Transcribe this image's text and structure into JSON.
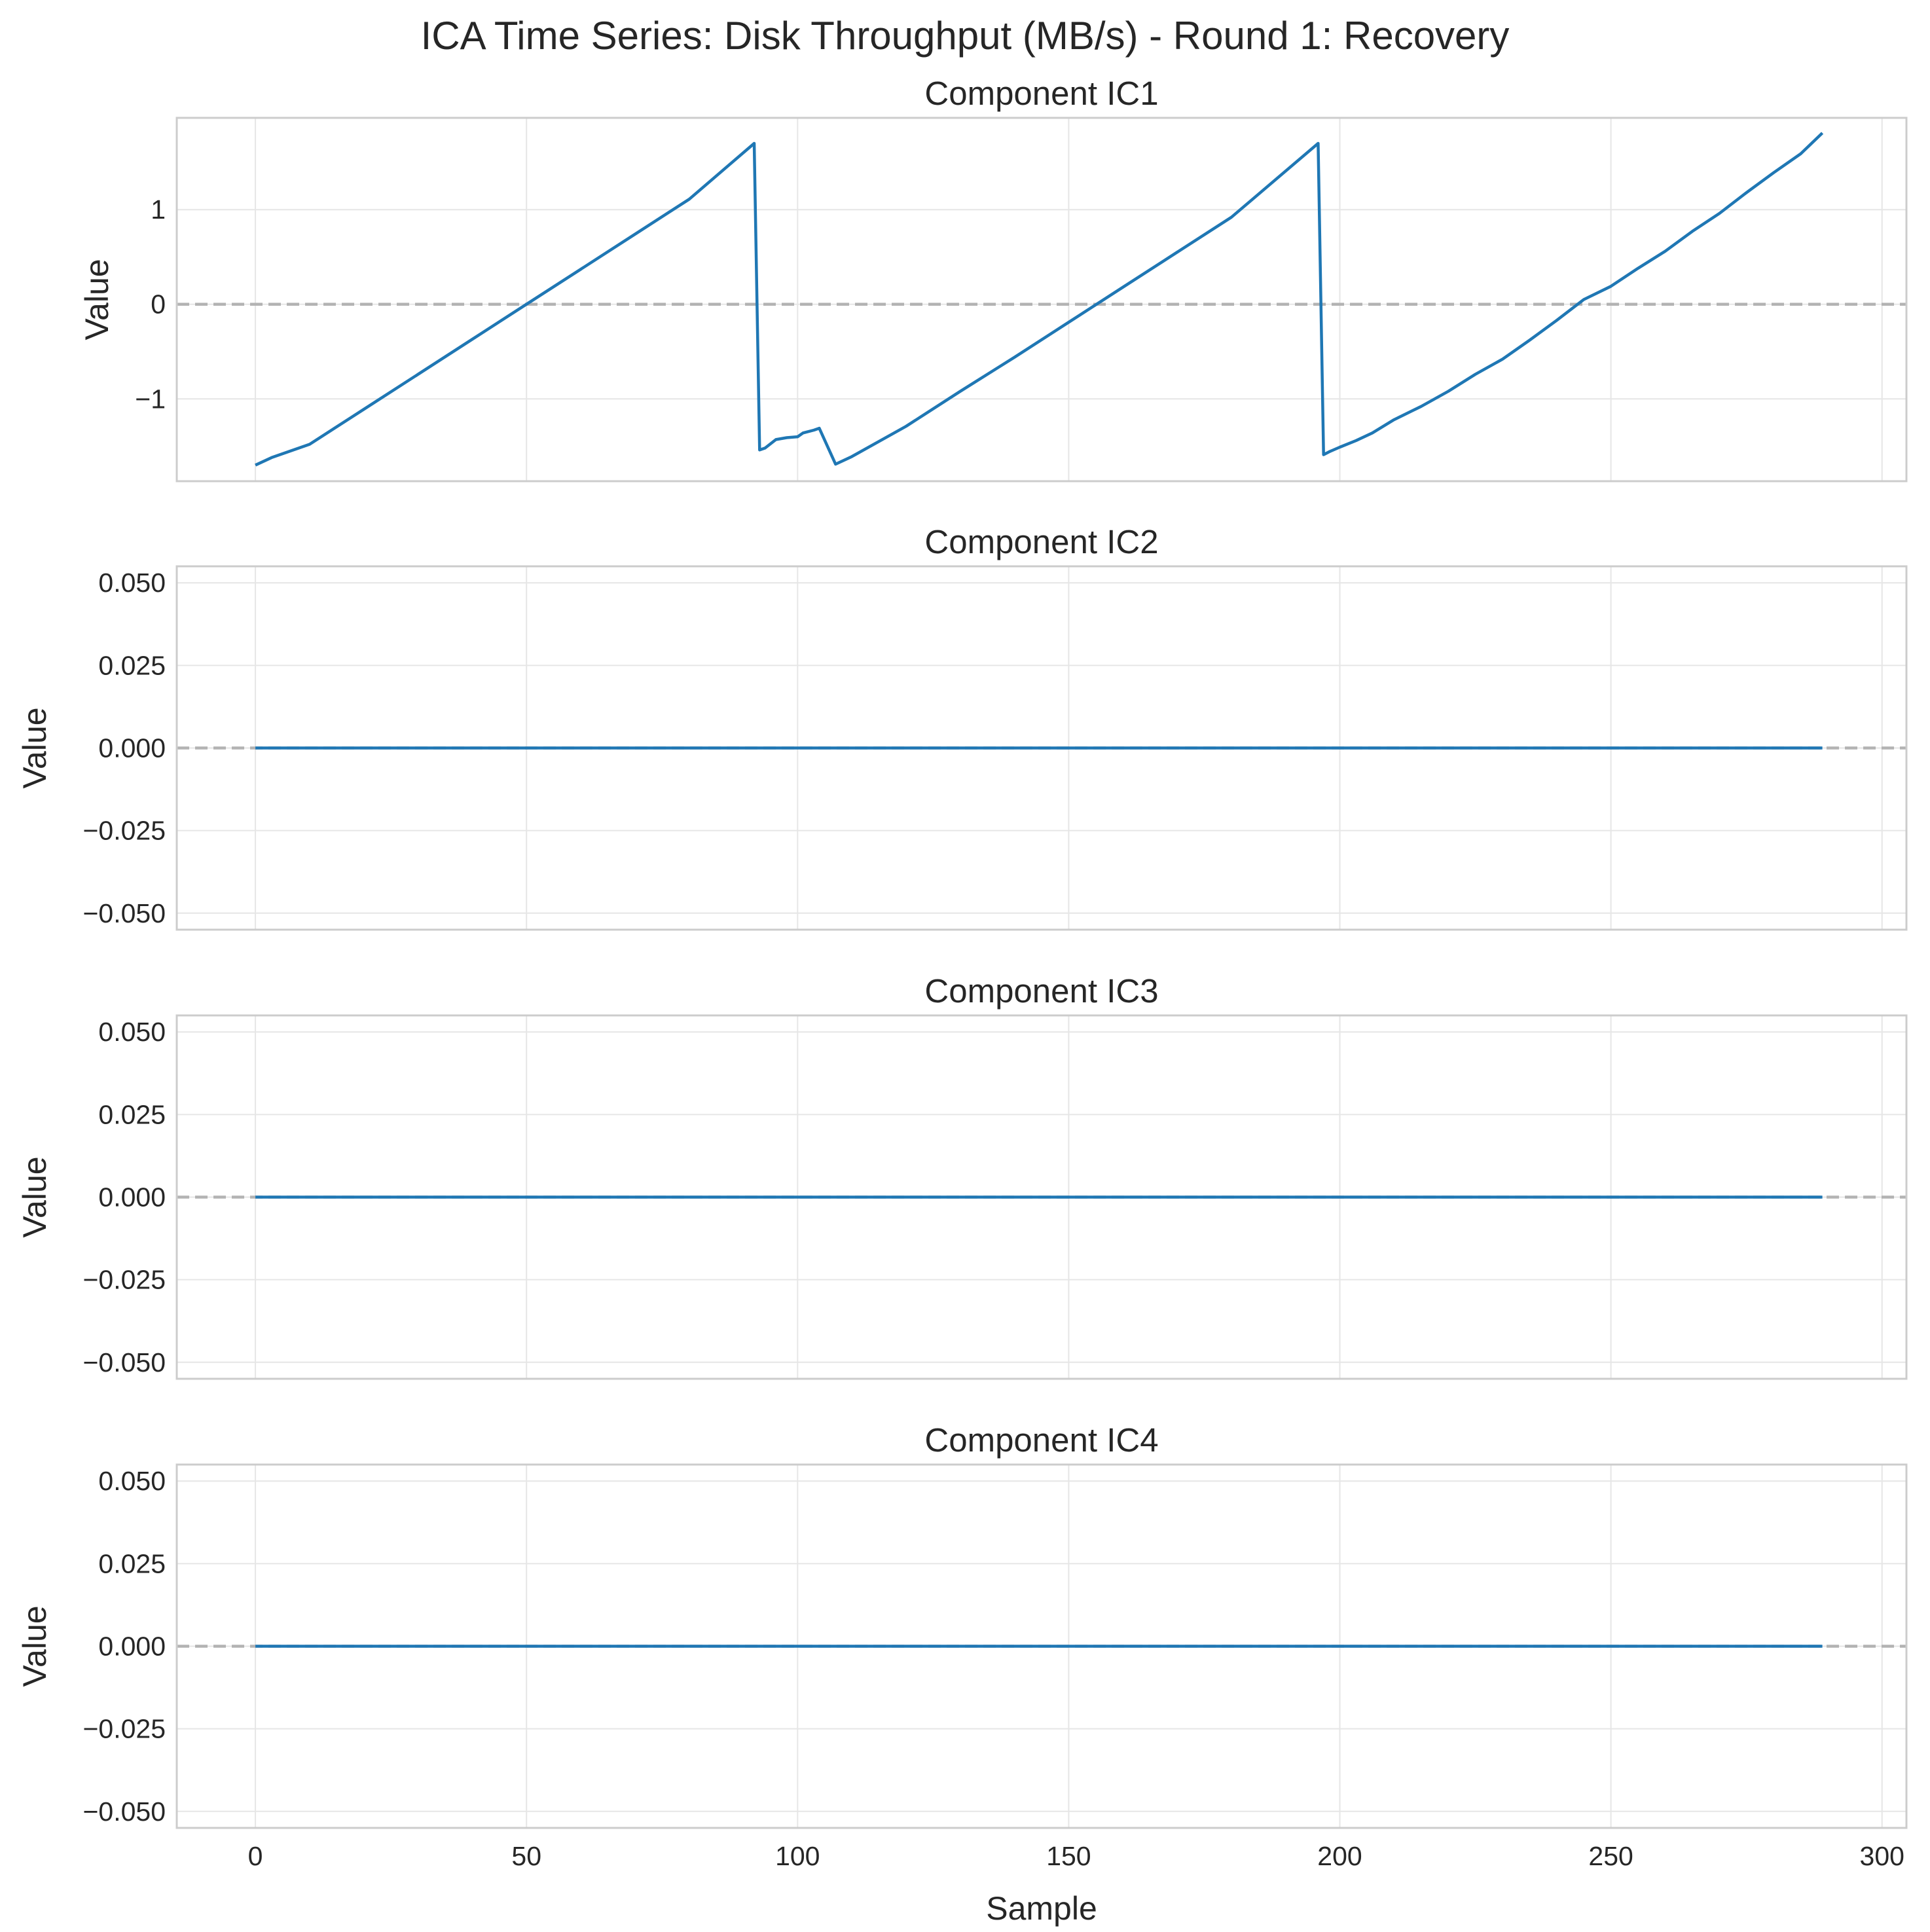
{
  "title": "ICA Time Series: Disk Throughput (MB/s) - Round 1: Recovery",
  "colors": {
    "line": "#1f77b4",
    "zero_line": "#b3b3b3",
    "grid": "#e6e6e6",
    "frame": "#cccccc"
  },
  "chart_data": [
    {
      "type": "line",
      "title": "Component IC1",
      "xlabel": "",
      "ylabel": "Value",
      "xlim": [
        -14.5,
        304.5
      ],
      "ylim": [
        -1.87,
        1.97
      ],
      "xticks": [
        0,
        50,
        100,
        150,
        200,
        250,
        300
      ],
      "xtick_labels": [
        "",
        "",
        "",
        "",
        "",
        "",
        ""
      ],
      "yticks": [
        -1,
        0,
        1
      ],
      "ytick_labels": [
        "−1",
        "0",
        "1"
      ],
      "grid": true,
      "reference_line": {
        "y": 0,
        "style": "dashed"
      },
      "series": [
        {
          "x": [
            0,
            3,
            10,
            20,
            30,
            40,
            50,
            60,
            70,
            80,
            92,
            93,
            94,
            96,
            98,
            100,
            101,
            103,
            104,
            107,
            110,
            120,
            130,
            140,
            150,
            160,
            170,
            180,
            196,
            197,
            198,
            200,
            203,
            206,
            210,
            215,
            220,
            225,
            230,
            235,
            240,
            245,
            250,
            255,
            260,
            265,
            270,
            275,
            280,
            285,
            289
          ],
          "y": [
            -1.7,
            -1.62,
            -1.48,
            -1.11,
            -0.74,
            -0.37,
            0.0,
            0.37,
            0.74,
            1.11,
            1.7,
            -1.54,
            -1.52,
            -1.43,
            -1.41,
            -1.4,
            -1.36,
            -1.33,
            -1.31,
            -1.69,
            -1.61,
            -1.29,
            -0.92,
            -0.56,
            -0.19,
            0.18,
            0.55,
            0.92,
            1.7,
            -1.59,
            -1.56,
            -1.51,
            -1.44,
            -1.36,
            -1.22,
            -1.08,
            -0.92,
            -0.74,
            -0.58,
            -0.38,
            -0.17,
            0.05,
            0.19,
            0.38,
            0.56,
            0.77,
            0.96,
            1.18,
            1.39,
            1.59,
            1.81
          ]
        }
      ]
    },
    {
      "type": "line",
      "title": "Component IC2",
      "xlabel": "",
      "ylabel": "Value",
      "xlim": [
        -14.5,
        304.5
      ],
      "ylim": [
        -0.055,
        0.055
      ],
      "xticks": [
        0,
        50,
        100,
        150,
        200,
        250,
        300
      ],
      "xtick_labels": [
        "",
        "",
        "",
        "",
        "",
        "",
        ""
      ],
      "yticks": [
        -0.05,
        -0.025,
        0,
        0.025,
        0.05
      ],
      "ytick_labels": [
        "−0.050",
        "−0.025",
        "0.000",
        "0.025",
        "0.050"
      ],
      "grid": true,
      "reference_line": {
        "y": 0,
        "style": "dashed"
      },
      "series": [
        {
          "x": [
            0,
            289
          ],
          "y": [
            0,
            0
          ]
        }
      ]
    },
    {
      "type": "line",
      "title": "Component IC3",
      "xlabel": "",
      "ylabel": "Value",
      "xlim": [
        -14.5,
        304.5
      ],
      "ylim": [
        -0.055,
        0.055
      ],
      "xticks": [
        0,
        50,
        100,
        150,
        200,
        250,
        300
      ],
      "xtick_labels": [
        "",
        "",
        "",
        "",
        "",
        "",
        ""
      ],
      "yticks": [
        -0.05,
        -0.025,
        0,
        0.025,
        0.05
      ],
      "ytick_labels": [
        "−0.050",
        "−0.025",
        "0.000",
        "0.025",
        "0.050"
      ],
      "grid": true,
      "reference_line": {
        "y": 0,
        "style": "dashed"
      },
      "series": [
        {
          "x": [
            0,
            289
          ],
          "y": [
            0,
            0
          ]
        }
      ]
    },
    {
      "type": "line",
      "title": "Component IC4",
      "xlabel": "Sample",
      "ylabel": "Value",
      "xlim": [
        -14.5,
        304.5
      ],
      "ylim": [
        -0.055,
        0.055
      ],
      "xticks": [
        0,
        50,
        100,
        150,
        200,
        250,
        300
      ],
      "xtick_labels": [
        "0",
        "50",
        "100",
        "150",
        "200",
        "250",
        "300"
      ],
      "yticks": [
        -0.05,
        -0.025,
        0,
        0.025,
        0.05
      ],
      "ytick_labels": [
        "−0.050",
        "−0.025",
        "0.000",
        "0.025",
        "0.050"
      ],
      "grid": true,
      "reference_line": {
        "y": 0,
        "style": "dashed"
      },
      "series": [
        {
          "x": [
            0,
            289
          ],
          "y": [
            0,
            0
          ]
        }
      ]
    }
  ]
}
